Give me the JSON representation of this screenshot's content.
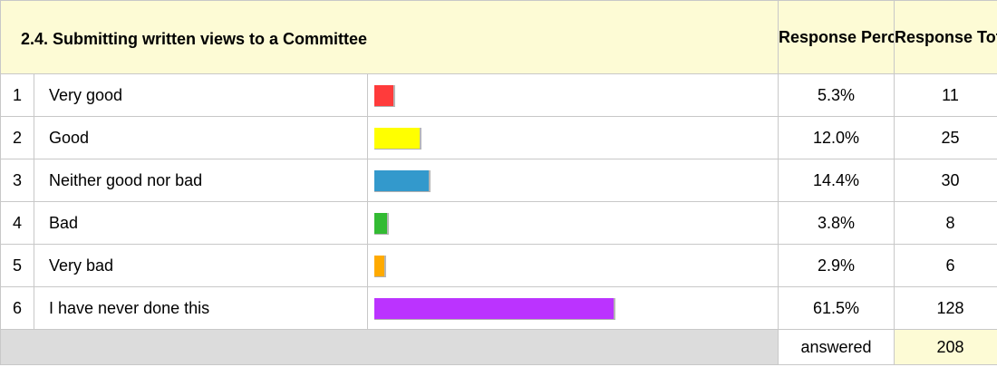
{
  "chart_data": {
    "type": "bar",
    "title": "2.4. Submitting written views to a Committee",
    "columns": [
      "Response Percent",
      "Response Total"
    ],
    "categories": [
      "Very good",
      "Good",
      "Neither good nor bad",
      "Bad",
      "Very bad",
      "I have never done this"
    ],
    "rows": [
      {
        "num": "1",
        "label": "Very good",
        "percent": 5.3,
        "percent_label": "5.3%",
        "total": "11",
        "color": "#ff3b3b"
      },
      {
        "num": "2",
        "label": "Good",
        "percent": 12.0,
        "percent_label": "12.0%",
        "total": "25",
        "color": "#ffff00"
      },
      {
        "num": "3",
        "label": "Neither good nor bad",
        "percent": 14.4,
        "percent_label": "14.4%",
        "total": "30",
        "color": "#3399cc"
      },
      {
        "num": "4",
        "label": "Bad",
        "percent": 3.8,
        "percent_label": "3.8%",
        "total": "8",
        "color": "#33bb33"
      },
      {
        "num": "5",
        "label": "Very bad",
        "percent": 2.9,
        "percent_label": "2.9%",
        "total": "6",
        "color": "#ffaa00"
      },
      {
        "num": "6",
        "label": "I have never done this",
        "percent": 61.5,
        "percent_label": "61.5%",
        "total": "128",
        "color": "#bb33ff"
      }
    ],
    "answered_label": "answered",
    "answered_total": "208"
  }
}
